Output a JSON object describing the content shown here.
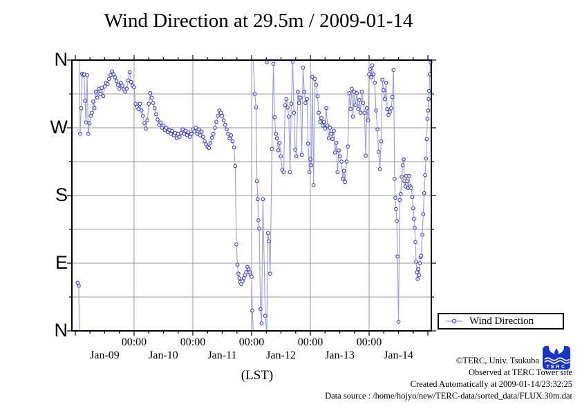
{
  "title": "Wind Direction at 29.5m / 2009-01-14",
  "legend": {
    "label": "Wind Direction"
  },
  "axes": {
    "x_label": "(LST)",
    "x_time_tick_label": "00:00",
    "x_time_ticks_hours": [
      24,
      48,
      72,
      96,
      120
    ],
    "x_date_ticks": [
      {
        "label": "Jan-09",
        "center_hour": 12
      },
      {
        "label": "Jan-10",
        "center_hour": 36
      },
      {
        "label": "Jan-11",
        "center_hour": 60
      },
      {
        "label": "Jan-12",
        "center_hour": 84
      },
      {
        "label": "Jan-13",
        "center_hour": 108
      },
      {
        "label": "Jan-14",
        "center_hour": 132
      }
    ],
    "y_ticks": [
      {
        "label": "N",
        "deg": 360
      },
      {
        "label": "W",
        "deg": 270
      },
      {
        "label": "S",
        "deg": 180
      },
      {
        "label": "E",
        "deg": 90
      },
      {
        "label": "N",
        "deg": 0
      }
    ]
  },
  "credits": {
    "line1": "©TERC, Univ. Tsukuba",
    "line2": "Observed at TERC Tower site",
    "line3": "Created Automatically at 2009-01-14/23:32:25",
    "line4": "Data source : /home/hojyo/new/TERC-data/sorted_data/FLUX.30m.dat"
  },
  "logo": {
    "text": "TERC",
    "color": "#1a35cc"
  },
  "colors": {
    "line": "#9b9be0",
    "marker": "#3c3ccc",
    "marker_fill": "#ffffff",
    "grid": "#9a9a9a",
    "frame": "#000000"
  },
  "chart_data": {
    "type": "line",
    "title": "Wind Direction at 29.5m / 2009-01-14",
    "xlabel": "(LST)",
    "ylabel": "wind direction (compass)",
    "x_unit": "hours since 2009-01-09 00:00 LST",
    "x_range_hours": [
      -1.4,
      145.4
    ],
    "y_axis": {
      "min_deg": 0,
      "max_deg": 360,
      "tick_step_deg": 45,
      "labels_top_to_bottom": [
        "N",
        "W",
        "S",
        "E",
        "N"
      ],
      "note": "degrees wrap at N; 0=N bottom, 90=E, 180=S, 270=W, 360=N top"
    },
    "grid": true,
    "legend_position": "outside-bottom-right",
    "series": [
      {
        "name": "Wind Direction",
        "marker": "open-circle",
        "points_t_hours_deg": [
          [
            1,
            64
          ],
          [
            1.4,
            60
          ],
          [
            2,
            262
          ],
          [
            2.4,
            296
          ],
          [
            2.8,
            342
          ],
          [
            3.2,
            340
          ],
          [
            3.6,
            341
          ],
          [
            4,
            306
          ],
          [
            4.4,
            277
          ],
          [
            4.8,
            340
          ],
          [
            5.3,
            262
          ],
          [
            5.8,
            276
          ],
          [
            6.3,
            286
          ],
          [
            6.8,
            290
          ],
          [
            7.3,
            305
          ],
          [
            7.8,
            296
          ],
          [
            8.4,
            318
          ],
          [
            9,
            310
          ],
          [
            9.6,
            322
          ],
          [
            10.2,
            315
          ],
          [
            10.8,
            323
          ],
          [
            11.4,
            312
          ],
          [
            12,
            325
          ],
          [
            12.6,
            330
          ],
          [
            13.2,
            328
          ],
          [
            13.8,
            335
          ],
          [
            14.4,
            340
          ],
          [
            15,
            345
          ],
          [
            15.6,
            341
          ],
          [
            16.2,
            337
          ],
          [
            16.8,
            332
          ],
          [
            17.4,
            327
          ],
          [
            18,
            322
          ],
          [
            18.6,
            330
          ],
          [
            19.2,
            326
          ],
          [
            19.8,
            321
          ],
          [
            20.4,
            318
          ],
          [
            21,
            322
          ],
          [
            21.6,
            333
          ],
          [
            22.2,
            344
          ],
          [
            22.8,
            331
          ],
          [
            23.4,
            326
          ],
          [
            24,
            324
          ],
          [
            24.6,
            302
          ],
          [
            25.2,
            298
          ],
          [
            25.8,
            295
          ],
          [
            26.4,
            302
          ],
          [
            27,
            293
          ],
          [
            27.6,
            286
          ],
          [
            28.2,
            276
          ],
          [
            28.8,
            269
          ],
          [
            29.4,
            280
          ],
          [
            30,
            302
          ],
          [
            30.6,
            316
          ],
          [
            31.2,
            310
          ],
          [
            31.8,
            303
          ],
          [
            32.4,
            296
          ],
          [
            33,
            288
          ],
          [
            33.6,
            281
          ],
          [
            34.2,
            274
          ],
          [
            34.8,
            277
          ],
          [
            35.4,
            270
          ],
          [
            36,
            273
          ],
          [
            36.6,
            267
          ],
          [
            37.2,
            270
          ],
          [
            37.8,
            264
          ],
          [
            38.4,
            267
          ],
          [
            39,
            262
          ],
          [
            39.6,
            266
          ],
          [
            40.2,
            260
          ],
          [
            40.8,
            263
          ],
          [
            41.4,
            256
          ],
          [
            42,
            262
          ],
          [
            42.6,
            258
          ],
          [
            43.2,
            263
          ],
          [
            43.8,
            268
          ],
          [
            44.4,
            262
          ],
          [
            45,
            266
          ],
          [
            45.6,
            260
          ],
          [
            46.2,
            264
          ],
          [
            46.8,
            258
          ],
          [
            47.4,
            262
          ],
          [
            48,
            268
          ],
          [
            48.6,
            265
          ],
          [
            49.2,
            270
          ],
          [
            49.8,
            262
          ],
          [
            50.4,
            268
          ],
          [
            51,
            260
          ],
          [
            51.6,
            265
          ],
          [
            52.2,
            258
          ],
          [
            52.8,
            252
          ],
          [
            53.4,
            248
          ],
          [
            54,
            245
          ],
          [
            54.6,
            243
          ],
          [
            55.2,
            250
          ],
          [
            55.8,
            257
          ],
          [
            56.4,
            262
          ],
          [
            57,
            270
          ],
          [
            57.6,
            278
          ],
          [
            58.2,
            286
          ],
          [
            58.8,
            293
          ],
          [
            59.4,
            290
          ],
          [
            60,
            286
          ],
          [
            60.6,
            280
          ],
          [
            61.2,
            274
          ],
          [
            61.8,
            268
          ],
          [
            62.4,
            262
          ],
          [
            63,
            256
          ],
          [
            63.6,
            260
          ],
          [
            64.2,
            252
          ],
          [
            64.8,
            244
          ],
          [
            65.3,
            219
          ],
          [
            65.8,
            115
          ],
          [
            66.2,
            88
          ],
          [
            66.6,
            76
          ],
          [
            67,
            70
          ],
          [
            67.4,
            65
          ],
          [
            67.8,
            62
          ],
          [
            68.3,
            66
          ],
          [
            68.8,
            70
          ],
          [
            69.3,
            74
          ],
          [
            69.8,
            78
          ],
          [
            70.3,
            85
          ],
          [
            70.8,
            82
          ],
          [
            71.2,
            78
          ],
          [
            71.6,
            74
          ],
          [
            72,
            72
          ],
          [
            72.3,
            27
          ],
          [
            73.3,
            315
          ],
          [
            73.8,
            297
          ],
          [
            74.2,
            199
          ],
          [
            74.5,
            175
          ],
          [
            74.8,
            147
          ],
          [
            75.1,
            136
          ],
          [
            75.6,
            29
          ],
          [
            76.1,
            10
          ],
          [
            76.6,
            175
          ],
          [
            77.6,
            20
          ],
          [
            78.2,
            357
          ],
          [
            78.7,
            130
          ],
          [
            79.1,
            119
          ],
          [
            79.6,
            76
          ],
          [
            80.3,
            242
          ],
          [
            80.9,
            355
          ],
          [
            81.4,
            284
          ],
          [
            81.9,
            262
          ],
          [
            82.4,
            256
          ],
          [
            82.9,
            240
          ],
          [
            83.4,
            250
          ],
          [
            83.9,
            232
          ],
          [
            84.5,
            214
          ],
          [
            85.1,
            211
          ],
          [
            85.7,
            300
          ],
          [
            86.2,
            308
          ],
          [
            86.7,
            297
          ],
          [
            87.2,
            285
          ],
          [
            87.7,
            211
          ],
          [
            88.2,
            302
          ],
          [
            88.8,
            358
          ],
          [
            89.3,
            290
          ],
          [
            89.8,
            241
          ],
          [
            90.3,
            232
          ],
          [
            90.9,
            318
          ],
          [
            91.4,
            303
          ],
          [
            91.9,
            310
          ],
          [
            92.5,
            234
          ],
          [
            93,
            350
          ],
          [
            93.5,
            318
          ],
          [
            94,
            303
          ],
          [
            94.6,
            308
          ],
          [
            95.1,
            249
          ],
          [
            95.6,
            211
          ],
          [
            96,
            228
          ],
          [
            96.4,
            220
          ],
          [
            96.8,
            338
          ],
          [
            97.3,
            194
          ],
          [
            97.8,
            335
          ],
          [
            98.4,
            327
          ],
          [
            98.9,
            312
          ],
          [
            99.4,
            290
          ],
          [
            100,
            278
          ],
          [
            100.5,
            283
          ],
          [
            101,
            273
          ],
          [
            101.5,
            278
          ],
          [
            102,
            269
          ],
          [
            102.5,
            296
          ],
          [
            103,
            273
          ],
          [
            103.5,
            256
          ],
          [
            104,
            270
          ],
          [
            104.5,
            262
          ],
          [
            105,
            255
          ],
          [
            105.6,
            266
          ],
          [
            106.1,
            237
          ],
          [
            106.6,
            250
          ],
          [
            107.1,
            211
          ],
          [
            107.6,
            240
          ],
          [
            108.1,
            232
          ],
          [
            108.7,
            225
          ],
          [
            109.2,
            202
          ],
          [
            109.7,
            213
          ],
          [
            110.2,
            198
          ],
          [
            110.8,
            225
          ],
          [
            111.3,
            245
          ],
          [
            111.9,
            316
          ],
          [
            112.4,
            295
          ],
          [
            112.9,
            322
          ],
          [
            113.4,
            285
          ],
          [
            113.9,
            318
          ],
          [
            114.4,
            300
          ],
          [
            115,
            316
          ],
          [
            115.5,
            295
          ],
          [
            116,
            307
          ],
          [
            116.5,
            290
          ],
          [
            117,
            318
          ],
          [
            117.6,
            303
          ],
          [
            118.1,
            290
          ],
          [
            118.6,
            233
          ],
          [
            119.1,
            296
          ],
          [
            119.6,
            280
          ],
          [
            120,
            341
          ],
          [
            120.4,
            348
          ],
          [
            120.8,
            337
          ],
          [
            121.3,
            353
          ],
          [
            121.8,
            341
          ],
          [
            122.3,
            330
          ],
          [
            122.8,
            293
          ],
          [
            123.4,
            268
          ],
          [
            123.9,
            238
          ],
          [
            124.4,
            215
          ],
          [
            124.9,
            252
          ],
          [
            125.4,
            334
          ],
          [
            125.9,
            320
          ],
          [
            126.4,
            308
          ],
          [
            126.9,
            330
          ],
          [
            127.4,
            295
          ],
          [
            127.9,
            287
          ],
          [
            128.5,
            291
          ],
          [
            129,
            296
          ],
          [
            129.5,
            311
          ],
          [
            130,
            347
          ],
          [
            130.4,
            202
          ],
          [
            130.7,
            177
          ],
          [
            131,
            162
          ],
          [
            131.3,
            146
          ],
          [
            131.6,
            99
          ],
          [
            132,
            12
          ],
          [
            132.5,
            174
          ],
          [
            132.9,
            182
          ],
          [
            133.3,
            205
          ],
          [
            133.7,
            220
          ],
          [
            134.1,
            228
          ],
          [
            134.4,
            199
          ],
          [
            134.8,
            192
          ],
          [
            135.2,
            206
          ],
          [
            135.6,
            199
          ],
          [
            136,
            190
          ],
          [
            136.4,
            206
          ],
          [
            136.8,
            192
          ],
          [
            137.2,
            190
          ],
          [
            137.6,
            178
          ],
          [
            138,
            163
          ],
          [
            138.3,
            149
          ],
          [
            138.6,
            137
          ],
          [
            138.9,
            118
          ],
          [
            139.2,
            92
          ],
          [
            139.5,
            78
          ],
          [
            139.8,
            69
          ],
          [
            140.1,
            82
          ],
          [
            140.4,
            74
          ],
          [
            140.7,
            90
          ],
          [
            141,
            98
          ],
          [
            141.3,
            100
          ],
          [
            141.7,
            128
          ],
          [
            142.1,
            155
          ],
          [
            142.5,
            183
          ],
          [
            142.9,
            207
          ],
          [
            143.2,
            229
          ],
          [
            143.5,
            255
          ],
          [
            143.8,
            282
          ],
          [
            144.1,
            293
          ],
          [
            144.3,
            308
          ],
          [
            144.5,
            319
          ],
          [
            144.8,
            341
          ],
          [
            145.1,
            357
          ]
        ]
      }
    ]
  }
}
